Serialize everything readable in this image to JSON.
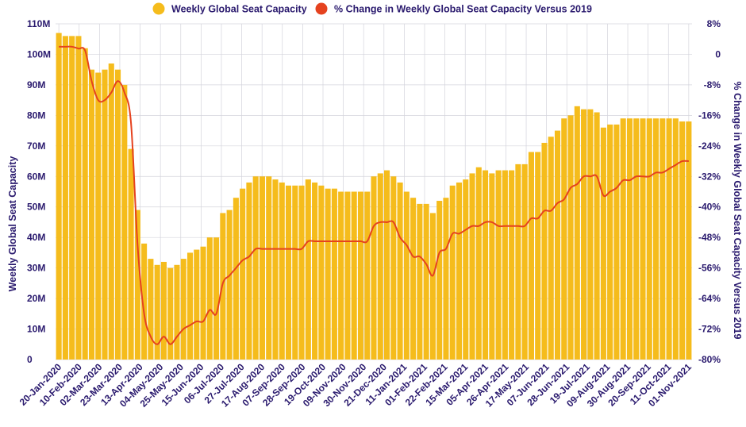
{
  "chart_data": {
    "type": "bar+line",
    "legend": [
      {
        "name": "Weekly Global Seat Capacity",
        "color": "#f5bc1c",
        "marker": "circle"
      },
      {
        "name": "% Change in Weekly Global Seat Capacity Versus 2019",
        "color": "#e5421f",
        "marker": "circle"
      }
    ],
    "legend_position": "top-center",
    "y_left": {
      "label": "Weekly Global Seat Capacity",
      "range": [
        0,
        110000000
      ],
      "ticks": [
        "0",
        "10M",
        "20M",
        "30M",
        "40M",
        "50M",
        "60M",
        "70M",
        "80M",
        "90M",
        "100M",
        "110M"
      ],
      "tick_values": [
        0,
        10000000,
        20000000,
        30000000,
        40000000,
        50000000,
        60000000,
        70000000,
        80000000,
        90000000,
        100000000,
        110000000
      ]
    },
    "y_right": {
      "label": "% Change in Weekly Global Seat Capacity Versus 2019",
      "range": [
        -80,
        8
      ],
      "ticks": [
        "8%",
        "0",
        "-8%",
        "-16%",
        "-24%",
        "-32%",
        "-40%",
        "-48%",
        "-56%",
        "-64%",
        "-72%",
        "-80%"
      ],
      "tick_values": [
        8,
        0,
        -8,
        -16,
        -24,
        -32,
        -40,
        -48,
        -56,
        -64,
        -72,
        -80
      ]
    },
    "x_tick_labels": [
      "20-Jan-2020",
      "10-Feb-2020",
      "02-Mar-2020",
      "23-Mar-2020",
      "13-Apr-2020",
      "04-May-2020",
      "25-May-2020",
      "15-Jun-2020",
      "06-Jul-2020",
      "27-Jul-2020",
      "17-Aug-2020",
      "07-Sep-2020",
      "28-Sep-2020",
      "19-Oct-2020",
      "09-Nov-2020",
      "30-Nov-2020",
      "21-Dec-2020",
      "11-Jan-2021",
      "01-Feb-2021",
      "22-Feb-2021",
      "15-Mar-2021",
      "05-Apr-2021",
      "26-Apr-2021",
      "17-May-2021",
      "07-Jun-2021",
      "28-Jun-2021",
      "19-Jul-2021",
      "09-Aug-2021",
      "30-Aug-2021",
      "20-Sep-2021",
      "11-Oct-2021",
      "01-Nov-2021"
    ],
    "grid": true,
    "bars": {
      "series": "Weekly Global Seat Capacity",
      "unit": "seats",
      "values": [
        107000000,
        106000000,
        106000000,
        106000000,
        102000000,
        95000000,
        94000000,
        95000000,
        97000000,
        95000000,
        90000000,
        69000000,
        49000000,
        38000000,
        33000000,
        31000000,
        32000000,
        30000000,
        31000000,
        33000000,
        35000000,
        36000000,
        37000000,
        40000000,
        40000000,
        48000000,
        49000000,
        53000000,
        56000000,
        58000000,
        60000000,
        60000000,
        60000000,
        59000000,
        58000000,
        57000000,
        57000000,
        57000000,
        59000000,
        58000000,
        57000000,
        56000000,
        56000000,
        55000000,
        55000000,
        55000000,
        55000000,
        55000000,
        60000000,
        61000000,
        62000000,
        60000000,
        58000000,
        55000000,
        53000000,
        51000000,
        51000000,
        48000000,
        52000000,
        53000000,
        57000000,
        58000000,
        59000000,
        61000000,
        63000000,
        62000000,
        61000000,
        62000000,
        62000000,
        62000000,
        64000000,
        64000000,
        68000000,
        68000000,
        71000000,
        73000000,
        75000000,
        79000000,
        80000000,
        83000000,
        82000000,
        82000000,
        81000000,
        76000000,
        77000000,
        77000000,
        79000000,
        79000000,
        79000000,
        79000000,
        79000000,
        79000000,
        79000000,
        79000000,
        79000000,
        78000000,
        78000000
      ]
    },
    "line": {
      "series": "% Change in Weekly Global Seat Capacity Versus 2019",
      "unit": "%",
      "values": [
        2,
        2,
        2,
        1.5,
        1,
        -7,
        -12,
        -12,
        -10,
        -7,
        -10,
        -18,
        -50,
        -68,
        -74,
        -76,
        -74,
        -76,
        -74,
        -72,
        -71,
        -70,
        -70,
        -67,
        -68,
        -60,
        -58,
        -56,
        -54,
        -53,
        -51,
        -51,
        -51,
        -51,
        -51,
        -51,
        -51,
        -51,
        -49,
        -49,
        -49,
        -49,
        -49,
        -49,
        -49,
        -49,
        -49,
        -49,
        -45,
        -44,
        -44,
        -44,
        -48,
        -50,
        -53,
        -53,
        -55,
        -58,
        -52,
        -51,
        -47,
        -47,
        -46,
        -45,
        -45,
        -44,
        -44,
        -45,
        -45,
        -45,
        -45,
        -45,
        -43,
        -43,
        -41,
        -41,
        -39,
        -38,
        -35,
        -34,
        -32,
        -32,
        -32,
        -37,
        -36,
        -35,
        -33,
        -33,
        -32,
        -32,
        -32,
        -31,
        -31,
        -30,
        -29,
        -28,
        -28
      ]
    }
  }
}
